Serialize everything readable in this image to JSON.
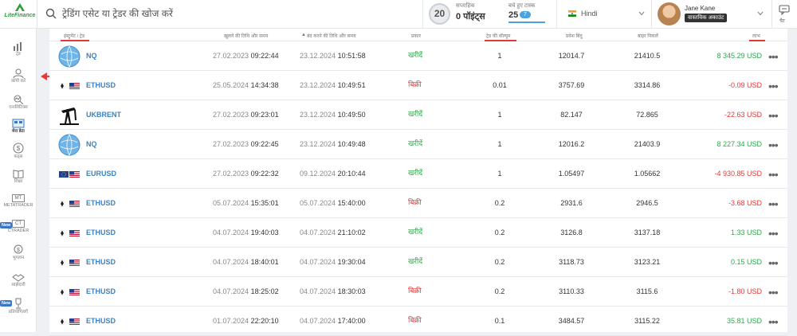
{
  "header": {
    "logo_text": "LiteFinance",
    "search_placeholder": "ट्रेडिंग एसेट या ट्रेडर की खोज करें",
    "level": "20",
    "points_label": "सप्ताहिक",
    "points_value": "0 पॉइंट्स",
    "tasks_label": "बचे हुए टास्क",
    "tasks_value": "25",
    "tasks_badge": "7",
    "language": "Hindi",
    "user_name": "Jane Kane",
    "account_badge": "वास्तविक अकाउंट",
    "chat_label": "चैट"
  },
  "sidebar": {
    "items": [
      {
        "label": "ट्रेड",
        "icon": "chart-icon"
      },
      {
        "label": "कॉपी करें",
        "icon": "copy-trader-icon"
      },
      {
        "label": "एनालिटिक्स",
        "icon": "analytics-icon"
      },
      {
        "label": "मेरा डेटा",
        "icon": "portfolio-icon"
      },
      {
        "label": "फंड्स",
        "icon": "dollar-icon"
      },
      {
        "label": "शिक्षा",
        "icon": "book-icon"
      },
      {
        "label": "METATRADER",
        "icon": "mt-icon"
      },
      {
        "label": "CTRADER",
        "icon": "ct-icon"
      },
      {
        "label": "भुगतान",
        "icon": "payment-icon"
      },
      {
        "label": "साझेदारी",
        "icon": "partner-icon"
      },
      {
        "label": "प्रतियोगिताएँ",
        "icon": "contest-icon"
      }
    ],
    "new_badge": "New"
  },
  "table": {
    "columns": [
      "इंस्ट्रूमेंट / ट्रेड",
      "खुलने की तिथि और समय",
      "बंद करने की तिथि और समय",
      "प्रकार",
      "ट्रेड की वॉल्यूम",
      "प्रवेश बिंदु",
      "बाहर निकलें",
      "लाभ"
    ],
    "rows": [
      {
        "symbol": "NQ",
        "icon": "nasdaq-globe-icon",
        "open_date": "27.02.2023",
        "open_time": "09:22:44",
        "close_date": "23.12.2024",
        "close_time": "10:51:58",
        "type": "खरीदें",
        "side": "buy",
        "volume": "1",
        "entry": "12014.7",
        "exit": "21410.5",
        "profit": "8 345.29 USD",
        "profit_sign": "pos"
      },
      {
        "symbol": "ETHUSD",
        "icon": "eth-us-flag-icon",
        "open_date": "25.05.2024",
        "open_time": "14:34:38",
        "close_date": "23.12.2024",
        "close_time": "10:49:51",
        "type": "बिक्री",
        "side": "sell",
        "volume": "0.01",
        "entry": "3757.69",
        "exit": "3314.86",
        "profit": "-0.09 USD",
        "profit_sign": "neg"
      },
      {
        "symbol": "UKBRENT",
        "icon": "oil-pump-icon",
        "open_date": "27.02.2023",
        "open_time": "09:23:01",
        "close_date": "23.12.2024",
        "close_time": "10:49:50",
        "type": "खरीदें",
        "side": "buy",
        "volume": "1",
        "entry": "82.147",
        "exit": "72.865",
        "profit": "-22.63 USD",
        "profit_sign": "neg"
      },
      {
        "symbol": "NQ",
        "icon": "nasdaq-globe-icon",
        "open_date": "27.02.2023",
        "open_time": "09:22:45",
        "close_date": "23.12.2024",
        "close_time": "10:49:48",
        "type": "खरीदें",
        "side": "buy",
        "volume": "1",
        "entry": "12016.2",
        "exit": "21403.9",
        "profit": "8 227.34 USD",
        "profit_sign": "pos"
      },
      {
        "symbol": "EURUSD",
        "icon": "eu-us-flag-icon",
        "open_date": "27.02.2023",
        "open_time": "09:22:32",
        "close_date": "09.12.2024",
        "close_time": "20:10:44",
        "type": "खरीदें",
        "side": "buy",
        "volume": "1",
        "entry": "1.05497",
        "exit": "1.05662",
        "profit": "-4 930.85 USD",
        "profit_sign": "neg"
      },
      {
        "symbol": "ETHUSD",
        "icon": "eth-us-flag-icon",
        "open_date": "05.07.2024",
        "open_time": "15:35:01",
        "close_date": "05.07.2024",
        "close_time": "15:40:00",
        "type": "बिक्री",
        "side": "sell",
        "volume": "0.2",
        "entry": "2931.6",
        "exit": "2946.5",
        "profit": "-3.68 USD",
        "profit_sign": "neg"
      },
      {
        "symbol": "ETHUSD",
        "icon": "eth-us-flag-icon",
        "open_date": "04.07.2024",
        "open_time": "19:40:03",
        "close_date": "04.07.2024",
        "close_time": "21:10:02",
        "type": "खरीदें",
        "side": "buy",
        "volume": "0.2",
        "entry": "3126.8",
        "exit": "3137.18",
        "profit": "1.33 USD",
        "profit_sign": "pos"
      },
      {
        "symbol": "ETHUSD",
        "icon": "eth-us-flag-icon",
        "open_date": "04.07.2024",
        "open_time": "18:40:01",
        "close_date": "04.07.2024",
        "close_time": "19:30:04",
        "type": "खरीदें",
        "side": "buy",
        "volume": "0.2",
        "entry": "3118.73",
        "exit": "3123.21",
        "profit": "0.15 USD",
        "profit_sign": "pos"
      },
      {
        "symbol": "ETHUSD",
        "icon": "eth-us-flag-icon",
        "open_date": "04.07.2024",
        "open_time": "18:25:02",
        "close_date": "04.07.2024",
        "close_time": "18:30:03",
        "type": "बिक्री",
        "side": "sell",
        "volume": "0.2",
        "entry": "3110.33",
        "exit": "3115.6",
        "profit": "-1.80 USD",
        "profit_sign": "neg"
      },
      {
        "symbol": "ETHUSD",
        "icon": "eth-us-flag-icon",
        "open_date": "01.07.2024",
        "open_time": "22:20:10",
        "close_date": "04.07.2024",
        "close_time": "17:40:00",
        "type": "बिक्री",
        "side": "sell",
        "volume": "0.1",
        "entry": "3484.57",
        "exit": "3115.22",
        "profit": "35.81 USD",
        "profit_sign": "pos"
      }
    ]
  },
  "colors": {
    "buy": "#2ea84a",
    "sell": "#e03a3a",
    "link": "#3b82c4",
    "accent": "#4aa3df"
  }
}
